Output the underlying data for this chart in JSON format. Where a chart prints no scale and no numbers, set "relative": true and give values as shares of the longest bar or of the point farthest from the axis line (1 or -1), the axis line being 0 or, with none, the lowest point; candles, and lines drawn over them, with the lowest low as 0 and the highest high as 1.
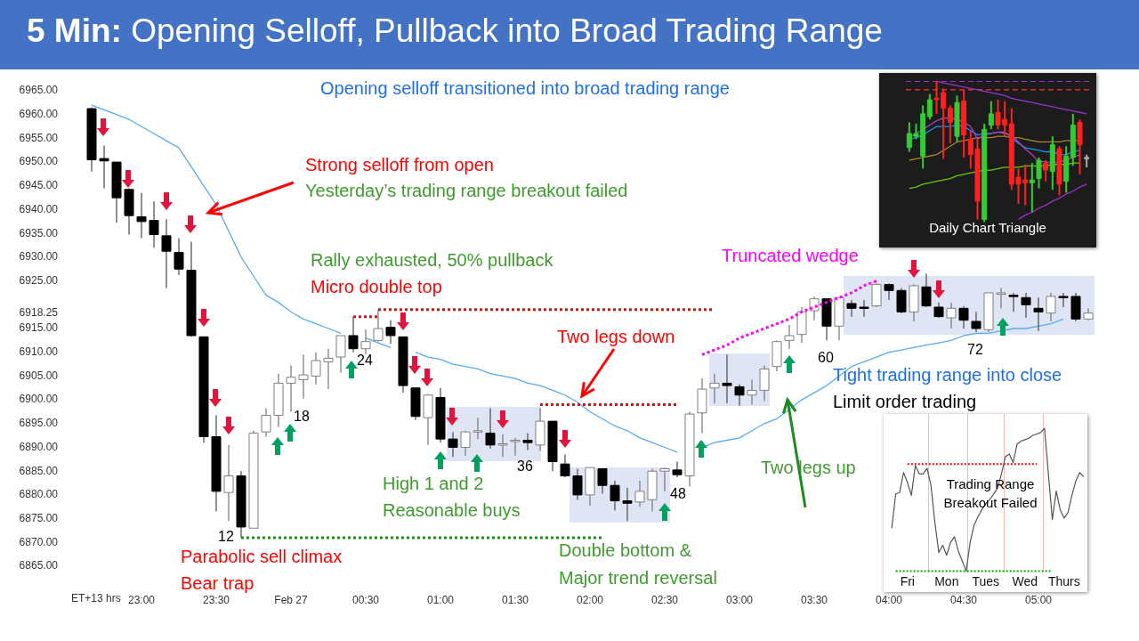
{
  "chart_data": [
    {
      "type": "candlestick",
      "title": "5 Min: Opening Selloff, Pullback into Broad Trading Range",
      "subtitle": "Opening selloff transitioned into broad trading range",
      "xlabel": "ET+13 hrs",
      "categories": [
        null,
        null,
        null,
        null,
        "23:00",
        null,
        null,
        null,
        null,
        null,
        "23:30",
        null,
        null,
        null,
        null,
        null,
        "Feb 27",
        null,
        null,
        null,
        null,
        null,
        "00:30",
        null,
        null,
        null,
        null,
        null,
        "01:00",
        null,
        null,
        null,
        null,
        null,
        "01:30",
        null,
        null,
        null,
        null,
        null,
        "02:00",
        null,
        null,
        null,
        null,
        null,
        "02:30",
        null,
        null,
        null,
        null,
        null,
        "03:00",
        null,
        null,
        null,
        null,
        null,
        "03:30",
        null,
        null,
        null,
        null,
        null,
        "04:00",
        null,
        null,
        null,
        null,
        null,
        "04:30",
        null,
        null,
        null,
        null,
        null,
        "05:00",
        null,
        null,
        null,
        null
      ],
      "ohlc": [
        [
          6961.25,
          6961.5,
          6948,
          6950.5
        ],
        [
          6950.75,
          6953.5,
          6944.5,
          6950.25
        ],
        [
          6950,
          6950,
          6937.25,
          6942.5
        ],
        [
          6944.25,
          6944.5,
          6934.75,
          6938.75
        ],
        [
          6938.5,
          6943.5,
          6934,
          6937.5
        ],
        [
          6937.75,
          6941.75,
          6932,
          6934.75
        ],
        [
          6934.5,
          6938,
          6923.5,
          6931.25
        ],
        [
          6931,
          6934,
          6926.25,
          6927.5
        ],
        [
          6927.25,
          6933.25,
          6913.25,
          6913.5
        ],
        [
          6913.25,
          6913.25,
          6891,
          6892.25
        ],
        [
          6892.25,
          6896.75,
          6876.5,
          6880.75
        ],
        [
          6880.5,
          6890.5,
          6874.5,
          6884
        ],
        [
          6884,
          6885,
          6871,
          6873.25
        ],
        [
          6873,
          6893.5,
          6873,
          6893
        ],
        [
          6893.25,
          6898.25,
          6892.25,
          6896.75
        ],
        [
          6896.75,
          6905.5,
          6894.25,
          6903.5
        ],
        [
          6903.5,
          6907.25,
          6897.5,
          6904.75
        ],
        [
          6904.25,
          6909.5,
          6900.25,
          6905.25
        ],
        [
          6905,
          6910,
          6903.25,
          6908.25
        ],
        [
          6908,
          6910.75,
          6902.25,
          6908.75
        ],
        [
          6909,
          6913.5,
          6905.75,
          6913.5
        ],
        [
          6913.5,
          6917.5,
          6910,
          6910.75
        ],
        [
          6910.75,
          6914.75,
          6909.5,
          6912.25
        ],
        [
          6912.5,
          6919,
          6912.25,
          6915
        ],
        [
          6915.25,
          6916.75,
          6911.75,
          6913.5
        ],
        [
          6913.25,
          6913.25,
          6901.5,
          6903
        ],
        [
          6902.5,
          6902.5,
          6895.75,
          6896.5
        ],
        [
          6896.25,
          6901.25,
          6890.5,
          6901
        ],
        [
          6900.5,
          6902.5,
          6891,
          6891.75
        ],
        [
          6891.75,
          6893.25,
          6888,
          6890
        ],
        [
          6890,
          6893.5,
          6888.25,
          6893.25
        ],
        [
          6893.25,
          6896.25,
          6891.75,
          6893.5
        ],
        [
          6893,
          6898.25,
          6889.75,
          6890.5
        ],
        [
          6890.5,
          6892.75,
          6888,
          6890.75
        ],
        [
          6891.25,
          6892,
          6888.25,
          6891.5
        ],
        [
          6891.5,
          6893,
          6889.5,
          6891
        ],
        [
          6890.5,
          6898.25,
          6889.25,
          6895.5
        ],
        [
          6895.5,
          6895.5,
          6885,
          6887
        ],
        [
          6886.5,
          6888.5,
          6883.75,
          6884
        ],
        [
          6884,
          6885.5,
          6879,
          6880
        ],
        [
          6880,
          6885.75,
          6877.75,
          6885.75
        ],
        [
          6885.5,
          6885.5,
          6880.25,
          6882
        ],
        [
          6882,
          6883,
          6876.75,
          6878.75
        ],
        [
          6878.75,
          6881.5,
          6874.5,
          6878.25
        ],
        [
          6878.5,
          6883,
          6877.5,
          6880.75
        ],
        [
          6879,
          6885.5,
          6876.5,
          6885
        ],
        [
          6885,
          6885.75,
          6880.75,
          6885.5
        ],
        [
          6885.25,
          6887,
          6883.75,
          6884.25
        ],
        [
          6884,
          6897.5,
          6881.75,
          6897
        ],
        [
          6897.25,
          6904.5,
          6893,
          6902.25
        ],
        [
          6902.5,
          6905.5,
          6899.25,
          6903.5
        ],
        [
          6903.5,
          6909.5,
          6899.25,
          6903
        ],
        [
          6902.75,
          6903.25,
          6898.75,
          6901
        ],
        [
          6901,
          6904.25,
          6899,
          6902
        ],
        [
          6902,
          6907.25,
          6899.75,
          6906.5
        ],
        [
          6907,
          6912.5,
          6906,
          6912.25
        ],
        [
          6912.5,
          6915.75,
          6910.75,
          6913.5
        ],
        [
          6913.75,
          6919.5,
          6912,
          6918.5
        ],
        [
          6918.75,
          6921.75,
          6916.75,
          6921.25
        ],
        [
          6921.25,
          6921.25,
          6912.5,
          6915.5
        ],
        [
          6915.5,
          6921.5,
          6912.5,
          6921.5
        ],
        [
          6920.25,
          6921,
          6917.5,
          6919.25
        ],
        [
          6919.5,
          6921,
          6917.5,
          6919.25
        ],
        [
          6919.75,
          6924.5,
          6919.5,
          6924.25
        ],
        [
          6924.25,
          6924.5,
          6921,
          6923
        ],
        [
          6923,
          6923.5,
          6918.25,
          6918.5
        ],
        [
          6918.5,
          6924.25,
          6916.5,
          6924
        ],
        [
          6923.75,
          6926.5,
          6919.5,
          6919.75
        ],
        [
          6919.5,
          6920.5,
          6917.25,
          6917.5
        ],
        [
          6917.25,
          6920.5,
          6915,
          6919.25
        ],
        [
          6919.25,
          6919.75,
          6915,
          6916.75
        ],
        [
          6916.5,
          6918.5,
          6914.25,
          6915
        ],
        [
          6914.75,
          6922.5,
          6914.25,
          6922.5
        ],
        [
          6922.25,
          6923.5,
          6919.25,
          6922.5
        ],
        [
          6922,
          6922.5,
          6918.5,
          6921.75
        ],
        [
          6921.5,
          6922.5,
          6917.25,
          6920
        ],
        [
          6919.25,
          6921.5,
          6914.5,
          6918.5
        ],
        [
          6918.25,
          6922.5,
          6916.5,
          6921.75
        ],
        [
          6921.75,
          6922.5,
          6919.5,
          6921.5
        ],
        [
          6921.75,
          6922.5,
          6916.5,
          6917
        ],
        [
          6917,
          6919.25,
          6916.75,
          6918.25
        ]
      ],
      "colors": [
        "#000000",
        "#000000",
        "#000000",
        "#000000",
        "#000000",
        "#000000",
        "#000000",
        "#000000",
        "#000000",
        "#000000",
        "#000000",
        "#ffffff",
        "#000000",
        "#ffffff",
        "#ffffff",
        "#ffffff",
        "#ffffff",
        "#ffffff",
        "#ffffff",
        "#ffffff",
        "#ffffff",
        "#000000",
        "#ffffff",
        "#ffffff",
        "#000000",
        "#000000",
        "#000000",
        "#ffffff",
        "#000000",
        "#000000",
        "#ffffff",
        "#ffffff",
        "#000000",
        "#ffffff",
        "#ffffff",
        "#000000",
        "#ffffff",
        "#000000",
        "#000000",
        "#000000",
        "#ffffff",
        "#000000",
        "#000000",
        "#000000",
        "#ffffff",
        "#ffffff",
        "#ffffff",
        "#000000",
        "#ffffff",
        "#ffffff",
        "#ffffff",
        "#000000",
        "#000000",
        "#ffffff",
        "#ffffff",
        "#ffffff",
        "#ffffff",
        "#ffffff",
        "#ffffff",
        "#000000",
        "#ffffff",
        "#000000",
        "#000000",
        "#ffffff",
        "#000000",
        "#000000",
        "#ffffff",
        "#000000",
        "#000000",
        "#ffffff",
        "#000000",
        "#000000",
        "#ffffff",
        "#ffffff",
        "#000000",
        "#000000",
        "#000000",
        "#ffffff",
        "#000000",
        "#000000",
        "#ffffff"
      ],
      "series": [
        {
          "type": "line",
          "color": "#5aaaf0",
          "values": [
            6962,
            6961,
            6960,
            6959,
            6957.5,
            6956,
            6954.5,
            6953,
            6949,
            6945,
            6941,
            6935.5,
            6930,
            6926,
            6922,
            6920.5,
            6918.5,
            6917,
            6916,
            6915,
            6914,
            null,
            6913,
            6912,
            6911,
            null,
            6910,
            6909,
            6908.5,
            6907.5,
            6907,
            6906.5,
            6905.5,
            6905,
            6904.5,
            6903.5,
            6903,
            6902,
            6901,
            6899.5,
            6897.5,
            6896,
            6894.5,
            6893.5,
            6892,
            6891,
            6890,
            6889,
            null,
            6890,
            6891,
            6891.5,
            6892,
            6893.5,
            6895,
            6896,
            6898,
            6900,
            6901.5,
            6903,
            6905,
            6907,
            6908,
            6909,
            6910,
            6910.5,
            6911,
            6911.5,
            6912,
            6912.5,
            6913.5,
            6914,
            6914,
            6914.5,
            6915,
            6915,
            6915.5,
            6916,
            6917,
            null,
            null
          ]
        },
        {
          "type": "line",
          "color": "#ff0000",
          "line_style": "dotted",
          "values": [
            null,
            null,
            null,
            null,
            null,
            null,
            null,
            null,
            null,
            null,
            null,
            null,
            null,
            null,
            null,
            null,
            null,
            null,
            null,
            null,
            null,
            6917.5,
            6917.5,
            6917.5,
            null,
            null,
            null,
            null,
            null,
            null,
            null,
            null,
            null,
            null,
            null,
            null,
            null,
            null,
            null,
            null,
            null,
            null,
            null,
            null,
            null,
            null,
            null,
            null,
            null,
            null,
            null,
            null,
            null,
            null,
            null,
            null,
            null,
            null,
            null,
            null,
            null,
            null,
            null,
            null,
            null,
            null,
            null,
            null,
            null,
            null,
            null,
            null,
            null,
            null,
            null,
            null,
            null,
            null,
            null,
            null,
            null
          ]
        },
        {
          "type": "line",
          "color": "#ff0000",
          "line_style": "dotted",
          "values": [
            null,
            null,
            null,
            null,
            null,
            null,
            null,
            null,
            null,
            null,
            null,
            null,
            null,
            null,
            null,
            null,
            null,
            null,
            null,
            null,
            null,
            null,
            null,
            6919,
            6919,
            6919,
            6919,
            6919,
            6919,
            6919,
            6919,
            6919,
            6919,
            6919,
            6919,
            6919,
            6919,
            6919,
            6919,
            6919,
            6919,
            6919,
            6919,
            6919,
            6919,
            6919,
            6919,
            6919,
            6919,
            6919,
            6919,
            null,
            null,
            null,
            null,
            null,
            null,
            null,
            null,
            null,
            null,
            null,
            null,
            null,
            null,
            null,
            null,
            null,
            null,
            null,
            null,
            null,
            null,
            null,
            null,
            null,
            null,
            null,
            null,
            null,
            null
          ]
        },
        {
          "type": "line",
          "color": "#ff0000",
          "line_style": "dotted",
          "values": [
            null,
            null,
            null,
            null,
            null,
            null,
            null,
            null,
            null,
            null,
            null,
            null,
            null,
            null,
            null,
            null,
            null,
            null,
            null,
            null,
            null,
            null,
            null,
            null,
            null,
            null,
            null,
            null,
            null,
            null,
            null,
            null,
            null,
            null,
            null,
            null,
            6899,
            6899,
            6899,
            6899,
            6899,
            6899,
            6899,
            6899,
            6899,
            6899,
            6899,
            6899,
            null,
            null,
            null,
            null,
            null,
            null,
            null,
            null,
            null,
            null,
            null,
            null,
            null,
            null,
            null,
            null,
            null,
            null,
            null,
            null,
            null,
            null,
            null,
            null,
            null,
            null,
            null,
            null,
            null,
            null,
            null,
            null,
            null
          ]
        },
        {
          "type": "line",
          "color": "#00a000",
          "line_style": "dotted",
          "values": [
            null,
            null,
            null,
            null,
            null,
            null,
            null,
            null,
            null,
            null,
            null,
            null,
            6871,
            6871,
            6871,
            6871,
            6871,
            6871,
            6871,
            6871,
            6871,
            6871,
            6871,
            6871,
            6871,
            6871,
            6871,
            6871,
            6871,
            6871,
            6871,
            6871,
            6871,
            6871,
            6871,
            6871,
            6871,
            6871,
            6871,
            6871,
            6871,
            6871,
            null,
            null,
            null,
            null,
            null,
            null,
            null,
            null,
            null,
            null,
            null,
            null,
            null,
            null,
            null,
            null,
            null,
            null,
            null,
            null,
            null,
            null,
            null,
            null,
            null,
            null,
            null,
            null,
            null,
            null,
            null,
            null,
            null,
            null,
            null,
            null,
            null,
            null,
            null
          ]
        },
        {
          "type": "line",
          "color": "#ff00ff",
          "line_style": "dotted",
          "values": [
            null,
            null,
            null,
            null,
            null,
            null,
            null,
            null,
            null,
            null,
            null,
            null,
            null,
            null,
            null,
            null,
            null,
            null,
            null,
            null,
            null,
            null,
            null,
            null,
            null,
            null,
            null,
            null,
            null,
            null,
            null,
            null,
            null,
            null,
            null,
            null,
            null,
            null,
            null,
            null,
            null,
            null,
            null,
            null,
            null,
            null,
            null,
            null,
            null,
            6909.5,
            6910.5,
            6911.5,
            6913,
            6914,
            6915,
            6916,
            6917,
            6918.5,
            6919.5,
            6920.5,
            6921.5,
            6922.5,
            6924,
            6925,
            null,
            null,
            null,
            null,
            null,
            null,
            null,
            null,
            null,
            null,
            null,
            null,
            null,
            null,
            null,
            null,
            null
          ]
        }
      ],
      "ylim": [
        6865,
        6965
      ],
      "yticks": [
        {
          "value": 6865,
          "label": "6865.00"
        },
        {
          "value": 6870,
          "label": "6870.00"
        },
        {
          "value": 6875,
          "label": "6875.00"
        },
        {
          "value": 6880,
          "label": "6880.00"
        },
        {
          "value": 6885,
          "label": "6885.00"
        },
        {
          "value": 6890,
          "label": "6890.00"
        },
        {
          "value": 6895,
          "label": "6895.00"
        },
        {
          "value": 6900,
          "label": "6900.00"
        },
        {
          "value": 6905,
          "label": "6905.00"
        },
        {
          "value": 6910,
          "label": "6910.00"
        },
        {
          "value": 6915,
          "label": "6915.00"
        },
        {
          "value": 6918.25,
          "label": "6918.25"
        },
        {
          "value": 6925,
          "label": "6925.00"
        },
        {
          "value": 6930,
          "label": "6930.00"
        },
        {
          "value": 6935,
          "label": "6935.00"
        },
        {
          "value": 6940,
          "label": "6940.00"
        },
        {
          "value": 6945,
          "label": "6945.00"
        },
        {
          "value": 6950,
          "label": "6950.00"
        },
        {
          "value": 6955,
          "label": "6955.00"
        },
        {
          "value": 6960,
          "label": "6960.00"
        },
        {
          "value": 6965,
          "label": "6965.00"
        }
      ],
      "annotations": [
        "Strong selloff from open",
        "Yesterday’s trading range breakout failed",
        "Rally exhausted, 50% pullback",
        "Micro double top",
        "Two legs down",
        "Truncated wedge",
        "Tight trading range into close",
        "Limit order trading",
        "Two legs up",
        "High 1 and 2",
        "Reasonable buys",
        "Double bottom &",
        "Major trend reversal",
        "Parabolic sell climax",
        "Bear trap",
        "12",
        "18",
        "24",
        "36",
        "48",
        "60",
        "72"
      ]
    },
    {
      "type": "candlestick",
      "title": "Daily Chart Triangle",
      "relative": true,
      "tick_labels": false,
      "categories": [
        null,
        null,
        null,
        null,
        null,
        null,
        null,
        null,
        null,
        null,
        null,
        null,
        null,
        null,
        null,
        null,
        null,
        null,
        null,
        null,
        null,
        null,
        null,
        null,
        null,
        null,
        null
      ],
      "ohlc": [
        [
          0.53,
          0.71,
          0.5,
          0.63
        ],
        [
          0.61,
          0.7,
          0.59,
          0.63
        ],
        [
          0.47,
          0.83,
          0.38,
          0.77
        ],
        [
          0.75,
          0.91,
          0.73,
          0.87
        ],
        [
          0.88,
          1,
          0.77,
          0.87
        ],
        [
          0.92,
          0.95,
          0.45,
          0.81
        ],
        [
          0.81,
          0.83,
          0.56,
          0.71
        ],
        [
          0.61,
          0.9,
          0.57,
          0.85
        ],
        [
          0.86,
          0.94,
          0.46,
          0.62
        ],
        [
          0.59,
          0.65,
          0.38,
          0.48
        ],
        [
          0.52,
          0.59,
          0.02,
          0.15
        ],
        [
          0.02,
          0.7,
          0,
          0.66
        ],
        [
          0.69,
          0.86,
          0.66,
          0.77
        ],
        [
          0.78,
          0.87,
          0.66,
          0.69
        ],
        [
          0.73,
          0.86,
          0.61,
          0.69
        ],
        [
          0.7,
          0.81,
          0.23,
          0.27
        ],
        [
          0.32,
          0.38,
          0.13,
          0.27
        ],
        [
          0.3,
          0.41,
          0.12,
          0.28
        ],
        [
          0.28,
          0.42,
          0.07,
          0.3
        ],
        [
          0.31,
          0.46,
          0.24,
          0.44
        ],
        [
          0.42,
          0.44,
          0.29,
          0.37
        ],
        [
          0.36,
          0.61,
          0.23,
          0.55
        ],
        [
          0.52,
          0.54,
          0.19,
          0.27
        ],
        [
          0.29,
          0.54,
          0.21,
          0.47
        ],
        [
          0.46,
          0.77,
          0.4,
          0.69
        ],
        [
          0.71,
          0.73,
          0.34,
          0.55
        ],
        [
          0.45,
          0.48,
          0.39,
          0.46
        ]
      ],
      "colors": [
        "#33cc33",
        "#33cc33",
        "#33cc33",
        "#33cc33",
        "#ff2020",
        "#ff2020",
        "#ff2020",
        "#33cc33",
        "#ff2020",
        "#ff2020",
        "#ff2020",
        "#33cc33",
        "#33cc33",
        "#ff2020",
        "#ff2020",
        "#ff2020",
        "#ff2020",
        "#ff2020",
        "#33cc33",
        "#33cc33",
        "#ff2020",
        "#33cc33",
        "#ff2020",
        "#33cc33",
        "#33cc33",
        "#ff2020",
        "#aaaaaa"
      ],
      "series": [
        {
          "type": "line",
          "color": "#b040c0",
          "values": [
            0.6,
            0.63,
            0.66,
            0.69,
            0.72,
            0.74,
            0.74,
            0.73,
            0.71,
            0.68,
            0.59,
            0.62,
            0.63,
            0.64,
            0.63,
            0.62,
            0.57,
            0.52,
            0.48,
            0.43,
            0.43,
            0.42,
            0.43,
            0.44,
            0.46,
            0.48,
            null
          ]
        },
        {
          "type": "line",
          "color": "#b08030",
          "values": [
            0.44,
            0.45,
            0.46,
            0.47,
            0.48,
            0.51,
            0.54,
            0.57,
            0.58,
            0.59,
            0.6,
            0.6,
            0.6,
            0.61,
            0.61,
            0.6,
            0.6,
            0.59,
            0.58,
            0.57,
            0.57,
            0.57,
            0.57,
            0.58,
            0.58,
            0.58,
            null
          ]
        },
        {
          "type": "line",
          "color": "#66cc00",
          "values": [
            0.24,
            0.25,
            0.27,
            0.28,
            0.29,
            0.3,
            0.31,
            0.33,
            0.34,
            0.35,
            0.36,
            0.37,
            0.37,
            0.38,
            0.39,
            0.39,
            0.39,
            0.4,
            0.4,
            0.4,
            0.4,
            0.41,
            0.41,
            0.41,
            0.42,
            0.42,
            null
          ]
        },
        {
          "type": "line",
          "color": "#2090ff",
          "values": [
            0.59,
            0.6,
            0.62,
            0.65,
            0.68,
            0.68,
            0.68,
            0.69,
            0.68,
            0.65,
            0.62,
            0.63,
            0.63,
            0.64,
            0.64,
            0.6,
            0.56,
            0.53,
            0.52,
            0.51,
            0.5,
            0.5,
            0.48,
            0.48,
            0.5,
            0.51,
            null
          ]
        },
        {
          "type": "line",
          "color": "#9933cc",
          "values": [
            null,
            null,
            null,
            null,
            1,
            0.99,
            0.98,
            0.97,
            0.96,
            0.95,
            0.94,
            0.93,
            0.92,
            0.91,
            0.9,
            0.88,
            0.87,
            0.86,
            0.85,
            0.84,
            0.83,
            0.82,
            0.81,
            0.8,
            0.79,
            0.78,
            0.77
          ]
        },
        {
          "type": "line",
          "color": "#9933cc",
          "values": [
            null,
            null,
            null,
            null,
            null,
            null,
            null,
            null,
            null,
            null,
            null,
            null,
            null,
            null,
            null,
            null,
            0.02,
            0.05,
            0.07,
            0.1,
            0.12,
            0.15,
            0.17,
            0.2,
            0.22,
            0.25,
            0.27
          ]
        }
      ],
      "ref_lines": [
        {
          "axis": "y",
          "value": 1,
          "color": "#9933cc",
          "line_style": "dashed"
        },
        {
          "axis": "y",
          "value": 0.94,
          "color": "#ff3333",
          "line_style": "dashed"
        }
      ]
    },
    {
      "type": "line",
      "title": "Trading Range Breakout Failed",
      "relative": true,
      "tick_labels": "x",
      "categories": [
        null,
        null,
        null,
        null,
        "Fri",
        null,
        null,
        null,
        null,
        null,
        null,
        null,
        null,
        null,
        "Mon",
        null,
        null,
        null,
        null,
        null,
        null,
        null,
        null,
        null,
        "Tues",
        null,
        null,
        null,
        null,
        null,
        null,
        null,
        null,
        null,
        "Wed",
        null,
        null,
        null,
        null,
        null,
        null,
        null,
        null,
        null,
        "Thurs",
        null,
        null,
        null,
        null,
        null
      ],
      "series": [
        {
          "color": "#555555",
          "values": [
            0.3,
            0.54,
            0.55,
            0.69,
            0.62,
            0.53,
            0.74,
            0.68,
            0.68,
            0.72,
            0.6,
            0.34,
            0.13,
            0.18,
            0.11,
            0.2,
            0.24,
            0.14,
            0.07,
            0,
            0.2,
            0.32,
            0.38,
            0.43,
            0.47,
            0.5,
            0.54,
            0.58,
            0.68,
            0.8,
            0.82,
            0.76,
            0.89,
            0.91,
            0.92,
            0.93,
            0.95,
            0.96,
            0.97,
            1,
            0.68,
            0.36,
            0.56,
            0.43,
            0.37,
            0.41,
            0.53,
            0.63,
            0.69,
            0.66
          ]
        },
        {
          "color": "#ff0000",
          "line_style": "dotted",
          "values": [
            null,
            null,
            null,
            null,
            0.75,
            0.75,
            0.75,
            0.75,
            0.75,
            0.75,
            0.75,
            0.75,
            0.75,
            0.75,
            0.75,
            0.75,
            0.75,
            0.75,
            0.75,
            0.75,
            0.75,
            0.75,
            0.75,
            0.75,
            0.75,
            0.75,
            0.75,
            0.75,
            0.75,
            0.75,
            0.75,
            0.75,
            0.75,
            0.75,
            0.75,
            0.75,
            0.75,
            0.75,
            null,
            null,
            null,
            null,
            null,
            null,
            null,
            null,
            null,
            null,
            null,
            null
          ]
        },
        {
          "color": "#00aa00",
          "line_style": "dotted",
          "values": [
            null,
            0,
            0,
            0,
            0,
            0,
            0,
            0,
            0,
            0,
            0,
            0,
            0,
            0,
            0,
            0,
            0,
            0,
            0,
            0,
            0,
            0,
            0,
            0,
            0,
            0,
            0,
            0,
            0,
            0,
            0,
            0,
            0,
            0,
            0,
            0,
            0,
            0,
            0,
            0,
            0,
            0,
            null,
            null,
            null,
            null,
            null,
            null,
            null,
            null
          ]
        }
      ]
    }
  ]
}
